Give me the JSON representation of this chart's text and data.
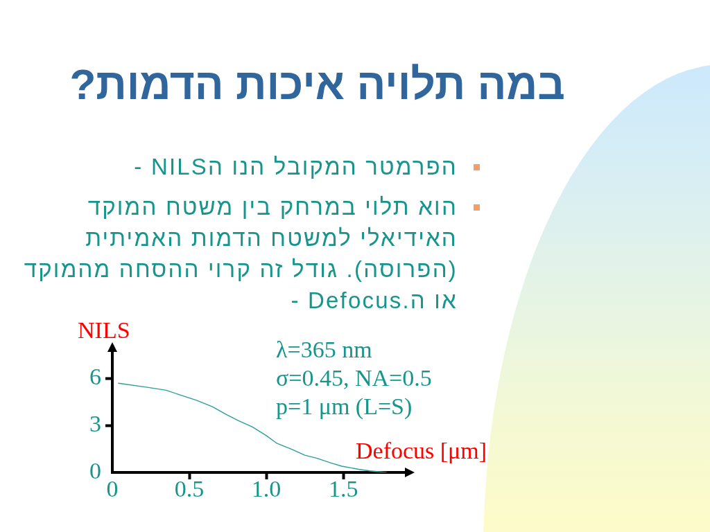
{
  "chart_data": {
    "type": "line",
    "title": "במה תלויה איכות הדמות?",
    "xlabel": "Defocus [μm]",
    "ylabel": "NILS",
    "annotations": [
      "הפרמטר המקובל הנו הNILS -",
      "הוא תלוי במרחק בין משטח המוקד האידיאלי למשטח הדמות האמיתית (הפרוסה). גודל זה קרוי ההסחה מהמוקד או ה.Defocus -",
      "λ=365 nm",
      "σ=0.45, NA=0.5",
      "p=1 μm (L=S)"
    ],
    "x": [
      0.04,
      0.22,
      0.35,
      0.44,
      0.55,
      0.65,
      0.74,
      0.82,
      0.91,
      1.0,
      1.07,
      1.16,
      1.25,
      1.33,
      1.42,
      1.49,
      1.6,
      1.67,
      1.78
    ],
    "series": [
      {
        "color": "#2a9d9d",
        "values": [
          5.7,
          5.45,
          5.25,
          4.95,
          4.6,
          4.2,
          3.7,
          3.3,
          2.9,
          2.35,
          1.85,
          1.5,
          1.1,
          0.9,
          0.6,
          0.4,
          0.2,
          0.1,
          0.0
        ]
      }
    ],
    "xlim": [
      0,
      1.9
    ],
    "ylim": [
      0,
      7.7
    ],
    "xticks": [
      0,
      0.5,
      {
        "value": 1,
        "label": "1.0"
      },
      1.5
    ],
    "yticks": [
      0,
      3,
      6
    ],
    "grid": false,
    "legend": false,
    "marker": "none",
    "line_style": "solid"
  }
}
